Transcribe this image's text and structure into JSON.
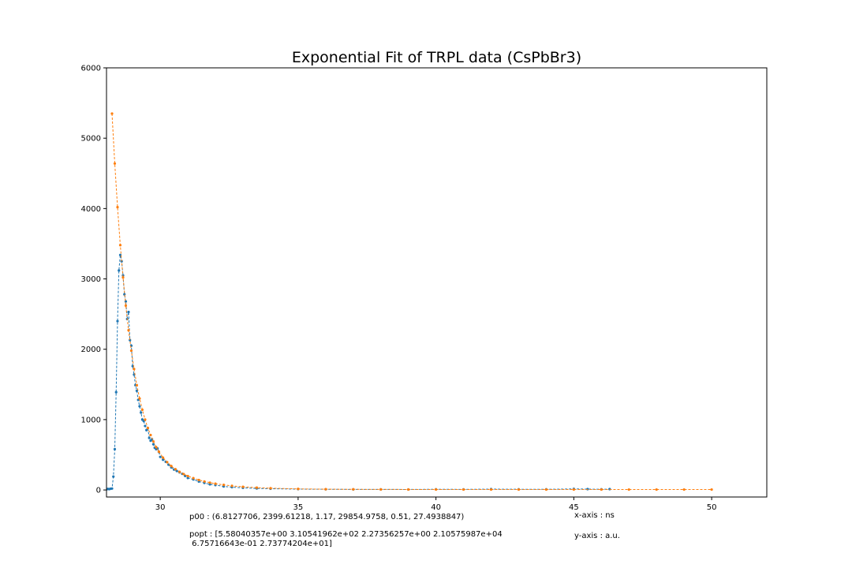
{
  "chart_data": {
    "type": "line",
    "title": "Exponential Fit of TRPL data (CsPbBr3)",
    "xlabel": "",
    "ylabel": "",
    "xlim": [
      28.05,
      52.0
    ],
    "ylim": [
      -100,
      6000
    ],
    "xticks": [
      30,
      35,
      40,
      45,
      50
    ],
    "yticks": [
      0,
      1000,
      2000,
      3000,
      4000,
      5000,
      6000
    ],
    "grid": false,
    "series": [
      {
        "color": "#1f77b4",
        "style": "dashed-with-markers",
        "x": [
          28.05,
          28.1,
          28.15,
          28.2,
          28.25,
          28.3,
          28.35,
          28.4,
          28.45,
          28.5,
          28.55,
          28.6,
          28.65,
          28.7,
          28.75,
          28.8,
          28.85,
          28.9,
          28.95,
          29.0,
          29.05,
          29.1,
          29.15,
          29.2,
          29.25,
          29.3,
          29.35,
          29.4,
          29.45,
          29.5,
          29.55,
          29.6,
          29.65,
          29.7,
          29.75,
          29.8,
          29.85,
          29.9,
          29.95,
          30.0,
          30.1,
          30.2,
          30.3,
          30.4,
          30.5,
          30.6,
          30.7,
          30.8,
          30.9,
          31.0,
          31.2,
          31.4,
          31.6,
          31.8,
          32.0,
          32.3,
          32.6,
          33.0,
          33.5,
          34.0,
          35.0,
          36.0,
          37.0,
          38.0,
          39.0,
          40.0,
          41.0,
          42.0,
          43.0,
          44.0,
          45.0,
          45.5,
          46.0,
          46.3
        ],
        "values": [
          10,
          15,
          12,
          18,
          20,
          190,
          580,
          1390,
          2400,
          3120,
          3340,
          3250,
          3050,
          2780,
          2680,
          2430,
          2530,
          2130,
          2050,
          1760,
          1640,
          1490,
          1410,
          1280,
          1190,
          1100,
          1000,
          980,
          910,
          850,
          880,
          740,
          700,
          720,
          650,
          600,
          580,
          590,
          540,
          470,
          430,
          400,
          360,
          320,
          290,
          270,
          250,
          230,
          200,
          170,
          150,
          120,
          100,
          80,
          70,
          50,
          40,
          30,
          22,
          18,
          12,
          10,
          8,
          8,
          7,
          10,
          8,
          12,
          10,
          9,
          15,
          12,
          10,
          12
        ]
      },
      {
        "color": "#ff7f0e",
        "style": "dashed-with-markers",
        "x": [
          28.25,
          28.35,
          28.45,
          28.55,
          28.65,
          28.75,
          28.85,
          28.95,
          29.05,
          29.15,
          29.25,
          29.35,
          29.45,
          29.55,
          29.65,
          29.75,
          29.85,
          29.95,
          30.1,
          30.25,
          30.4,
          30.55,
          30.7,
          30.85,
          31.0,
          31.2,
          31.4,
          31.6,
          31.8,
          32.0,
          32.3,
          32.6,
          33.0,
          33.5,
          34.0,
          35.0,
          36.0,
          37.0,
          38.0,
          39.0,
          40.0,
          41.0,
          42.0,
          43.0,
          44.0,
          45.0,
          46.0,
          47.0,
          48.0,
          49.0,
          50.0
        ],
        "values": [
          5350,
          4640,
          4020,
          3480,
          3020,
          2620,
          2270,
          1980,
          1720,
          1490,
          1300,
          1140,
          1000,
          880,
          780,
          690,
          610,
          545,
          460,
          395,
          340,
          295,
          258,
          226,
          198,
          168,
          142,
          121,
          104,
          89,
          72,
          58,
          45,
          33,
          25,
          15,
          11,
          9,
          8,
          7,
          7,
          6,
          6,
          6,
          6,
          6,
          6,
          6,
          6,
          6,
          6
        ]
      }
    ],
    "annotations": {
      "p00": "p00 : (6.8127706, 2399.61218, 1.17, 29854.9758, 0.51, 27.4938847)",
      "popt_line1": "popt : [5.58040357e+00 3.10541962e+02 2.27356257e+00 2.10575987e+04",
      "popt_line2": " 6.75716643e-01 2.73774204e+01]",
      "xaxis_note": "x-axis : ns",
      "yaxis_note": "y-axis : a.u."
    }
  }
}
